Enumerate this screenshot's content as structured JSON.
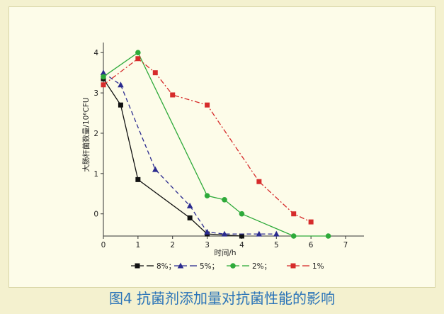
{
  "figure": {
    "caption": "图4 抗菌剂添加量对抗菌性能的影响",
    "panel_color": "#fdfce9",
    "background_color": "#f4f1cf",
    "caption_color": "#2b74b8"
  },
  "chart_data": {
    "type": "line",
    "title": "",
    "xlabel": "时间/h",
    "ylabel": "大肠杆菌数量/10⁶CFU",
    "xlim": [
      0,
      7
    ],
    "ylim": [
      -0.55,
      4.25
    ],
    "x_ticks": [
      "0",
      "1",
      "2",
      "3",
      "4",
      "5",
      "6",
      "7"
    ],
    "y_ticks": [
      "0",
      "1",
      "2",
      "3",
      "4"
    ],
    "grid": false,
    "legend_position": "bottom",
    "series": [
      {
        "name": "8%",
        "legend_label": "8%；",
        "color": "#111111",
        "marker": "square",
        "dash": "solid",
        "x": [
          0,
          0.5,
          1,
          2.5,
          3,
          4
        ],
        "y": [
          3.35,
          2.7,
          0.85,
          -0.1,
          -0.5,
          -0.55
        ]
      },
      {
        "name": "5%",
        "legend_label": "5%；",
        "color": "#2b2b8f",
        "marker": "triangle",
        "dash": "dashed",
        "x": [
          0,
          0.5,
          1.5,
          2.5,
          3,
          3.5,
          4.5,
          5
        ],
        "y": [
          3.5,
          3.2,
          1.1,
          0.2,
          -0.45,
          -0.5,
          -0.5,
          -0.5
        ]
      },
      {
        "name": "2%",
        "legend_label": "2%；",
        "color": "#2eaa3a",
        "marker": "circle",
        "dash": "solid",
        "x": [
          0,
          1,
          3,
          3.5,
          4,
          5.5,
          6.5
        ],
        "y": [
          3.4,
          4.0,
          0.45,
          0.35,
          0.0,
          -0.55,
          -0.55
        ]
      },
      {
        "name": "1%",
        "legend_label": "1%",
        "color": "#d62b2b",
        "marker": "square",
        "dash": "dashdot",
        "x": [
          0,
          1,
          1.5,
          2,
          3,
          4.5,
          5.5,
          6
        ],
        "y": [
          3.2,
          3.85,
          3.5,
          2.95,
          2.7,
          0.8,
          0.0,
          -0.2
        ]
      }
    ]
  }
}
